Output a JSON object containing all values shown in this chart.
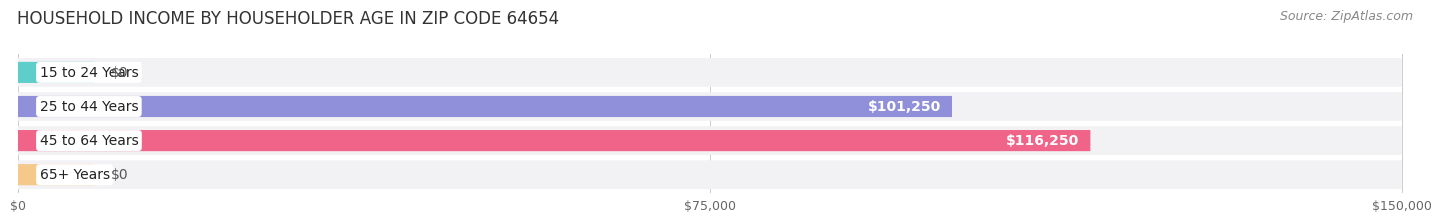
{
  "title": "HOUSEHOLD INCOME BY HOUSEHOLDER AGE IN ZIP CODE 64654",
  "source": "Source: ZipAtlas.com",
  "categories": [
    "15 to 24 Years",
    "25 to 44 Years",
    "45 to 64 Years",
    "65+ Years"
  ],
  "values": [
    0,
    101250,
    116250,
    0
  ],
  "bar_colors": [
    "#5ececa",
    "#8f8fda",
    "#f0648a",
    "#f5c98a"
  ],
  "background_color": "#ffffff",
  "bar_bg_color": "#e8e8eb",
  "row_bg_color": "#f2f2f5",
  "xlim": [
    0,
    150000
  ],
  "xticks": [
    0,
    75000,
    150000
  ],
  "xtick_labels": [
    "$0",
    "$75,000",
    "$150,000"
  ],
  "value_labels": [
    "$0",
    "$101,250",
    "$116,250",
    "$0"
  ],
  "bar_height": 0.62,
  "title_fontsize": 12,
  "label_fontsize": 10,
  "tick_fontsize": 9,
  "source_fontsize": 9
}
